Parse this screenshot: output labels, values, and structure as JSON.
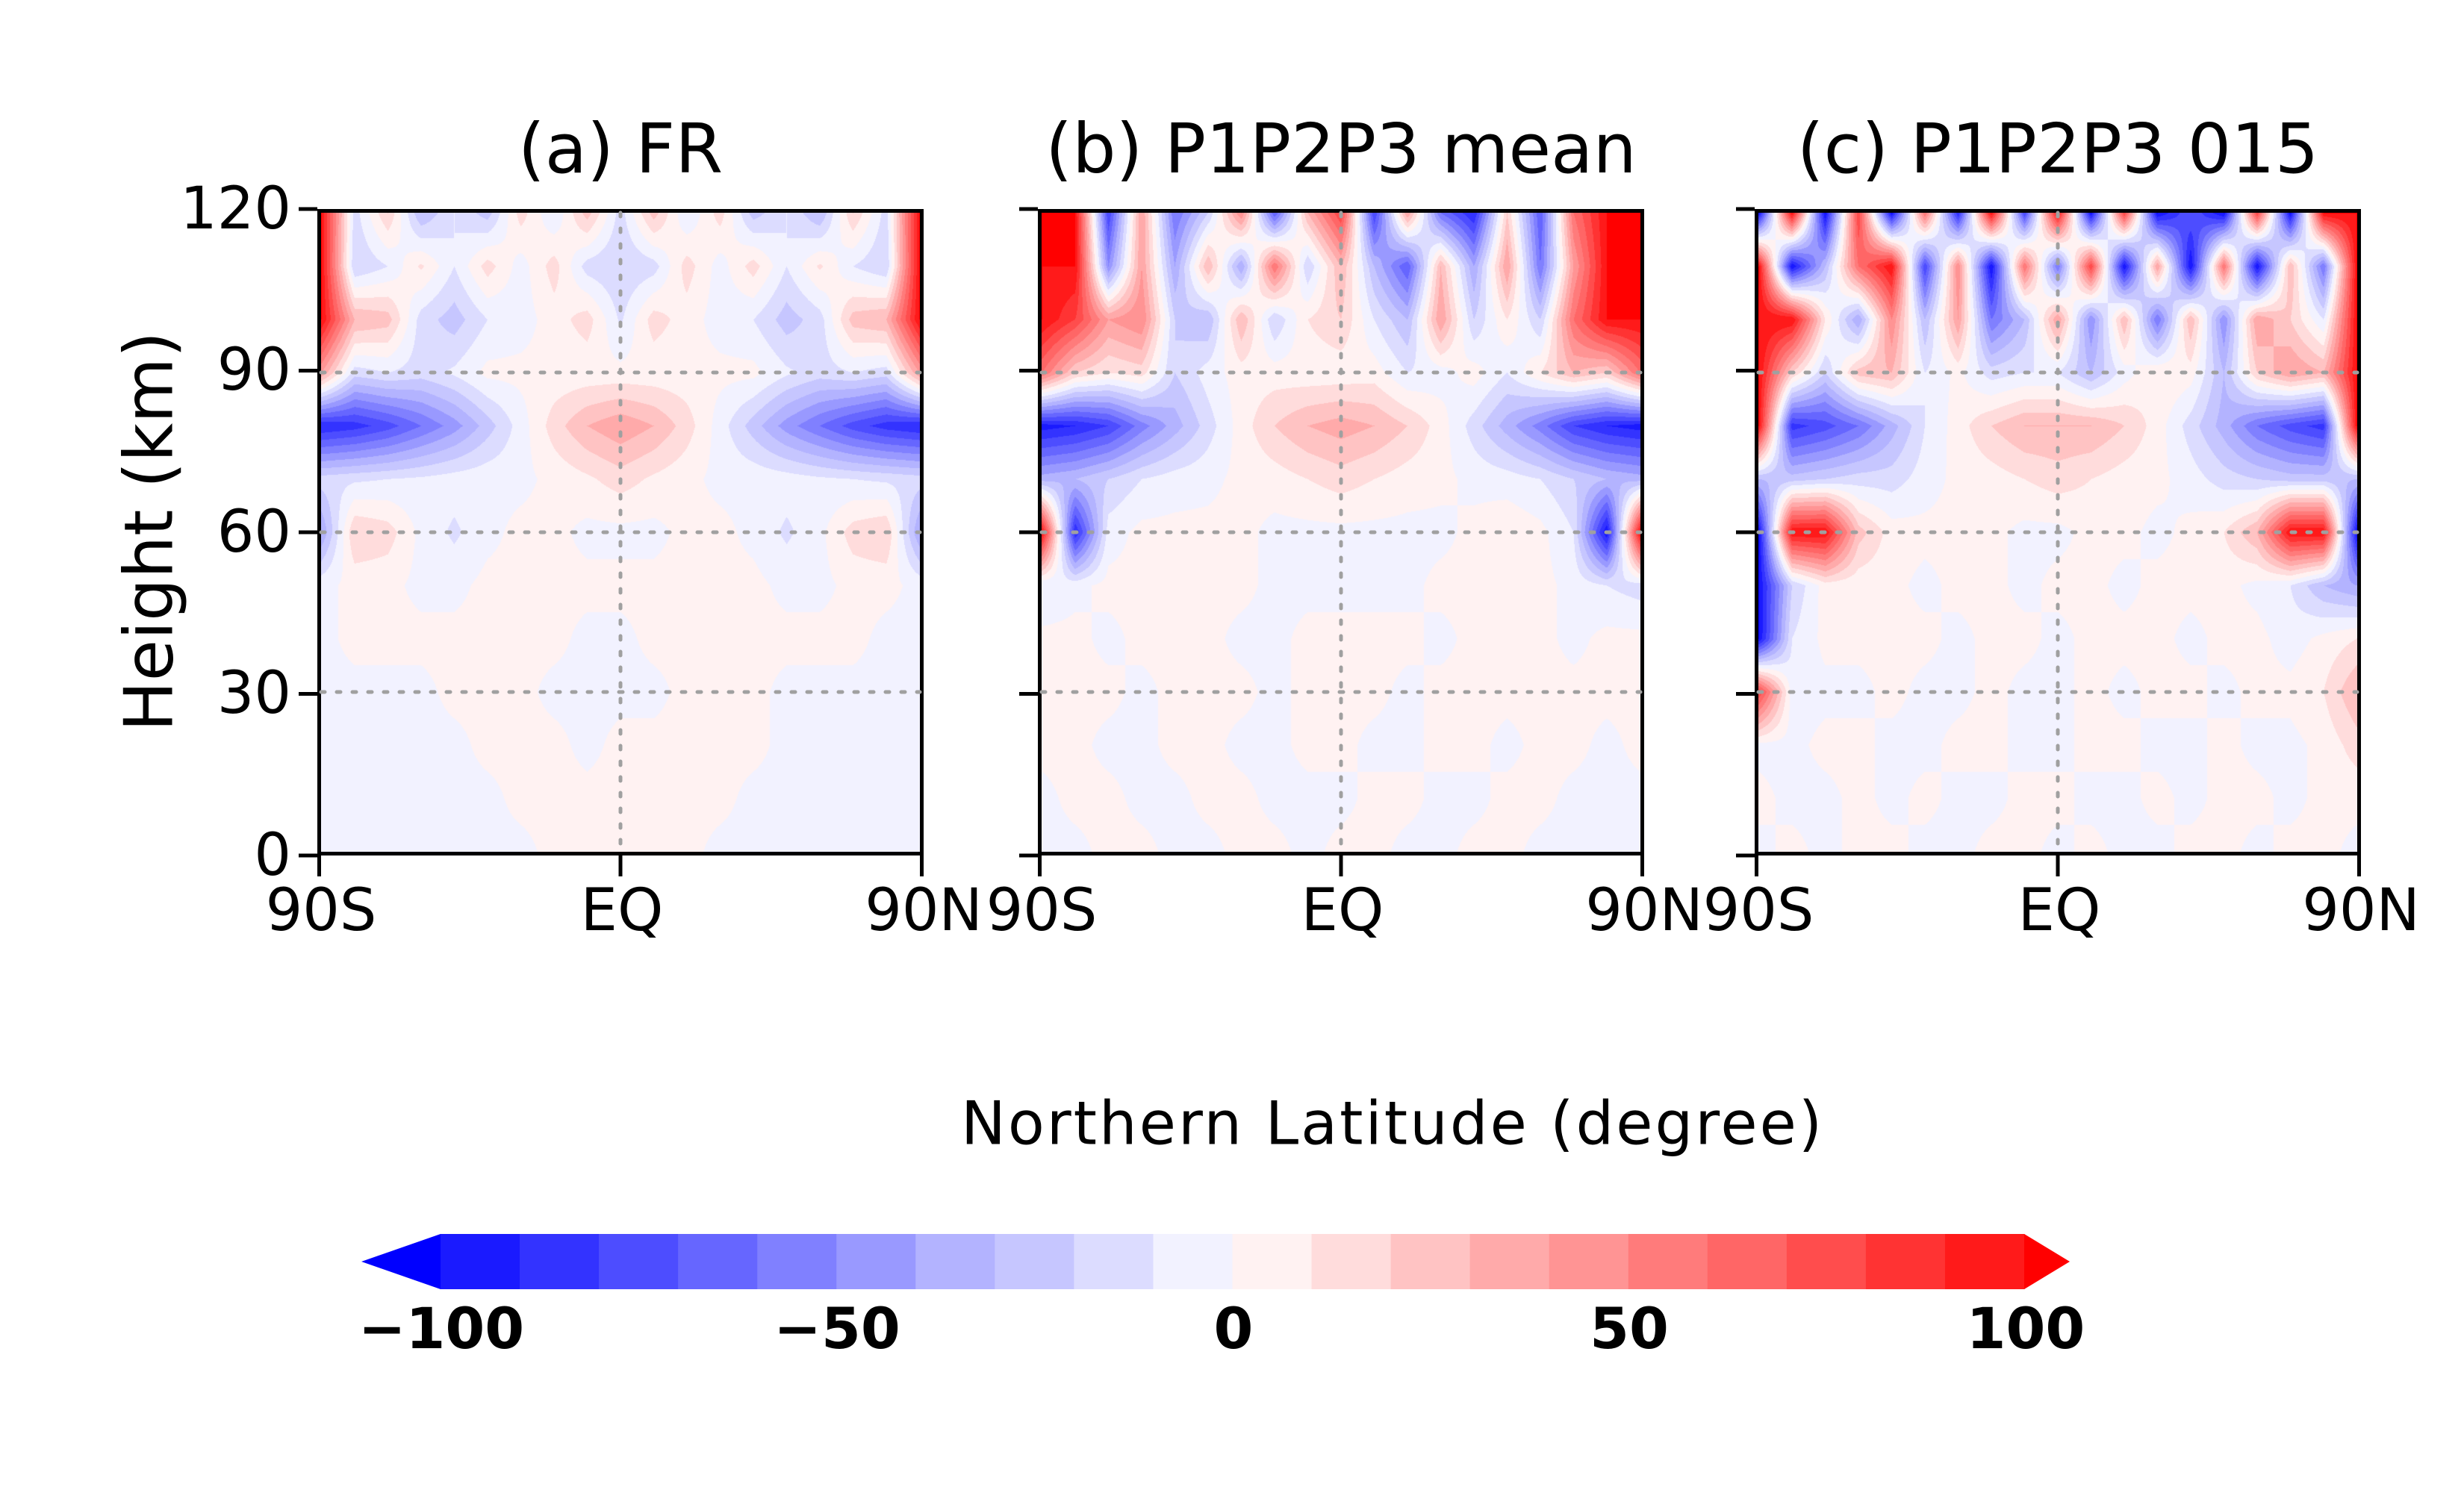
{
  "chart_data": {
    "type": "heatmap",
    "xlabel": "Northern Latitude (degree)",
    "ylabel": "Height (km)",
    "x_ticks": [
      "90S",
      "EQ",
      "90N"
    ],
    "y_ticks": [
      "0",
      "30",
      "60",
      "90",
      "120"
    ],
    "xlim": [
      -90,
      90
    ],
    "ylim": [
      0,
      120
    ],
    "grid": "dotted at 30, 60, 90 km and EQ",
    "lat": [
      -90,
      -80,
      -70,
      -60,
      -50,
      -40,
      -30,
      -20,
      -10,
      0,
      10,
      20,
      30,
      40,
      50,
      60,
      70,
      80,
      90
    ],
    "height": [
      0,
      10,
      20,
      30,
      40,
      50,
      60,
      70,
      80,
      90,
      100,
      110,
      120
    ],
    "colorbar": {
      "levels_min": -100,
      "levels_max": 100,
      "step": 10,
      "tick_labels": [
        "-100",
        "-50",
        "0",
        "50",
        "100"
      ],
      "tick_values": [
        -100,
        -50,
        0,
        50,
        100
      ],
      "colors": [
        "#1a1aff",
        "#3333ff",
        "#4d4dff",
        "#6666ff",
        "#8080ff",
        "#9999ff",
        "#b3b3ff",
        "#c6c6ff",
        "#dcdcff",
        "#f2f2ff",
        "#fff2f2",
        "#ffdcdc",
        "#ffc3c3",
        "#ffaaaa",
        "#ff9494",
        "#ff7b7b",
        "#ff6666",
        "#ff4d4d",
        "#ff3333",
        "#ff1a1a"
      ],
      "under_color": "#0000ff",
      "over_color": "#ff0000",
      "extend": "both",
      "placement": "bottom"
    },
    "panels": [
      {
        "title": "(a) FR",
        "z": [
          [
            -3,
            -3,
            -3,
            -3,
            -3,
            -3,
            -3,
            3,
            3,
            3,
            3,
            3,
            -3,
            -3,
            -3,
            -3,
            -3,
            -3,
            -3
          ],
          [
            -3,
            -3,
            -3,
            -3,
            -3,
            -3,
            3,
            3,
            3,
            3,
            3,
            3,
            3,
            -3,
            -3,
            -3,
            -3,
            -3,
            -3
          ],
          [
            -3,
            -3,
            -3,
            -3,
            -3,
            3,
            3,
            3,
            -3,
            3,
            3,
            3,
            3,
            3,
            -3,
            -3,
            -3,
            -3,
            -3
          ],
          [
            -3,
            -3,
            -3,
            -3,
            3,
            3,
            3,
            -3,
            -3,
            -3,
            -3,
            3,
            3,
            3,
            -3,
            -3,
            -3,
            -3,
            -3
          ],
          [
            -3,
            3,
            3,
            3,
            3,
            3,
            3,
            3,
            -3,
            -3,
            3,
            3,
            3,
            3,
            3,
            3,
            3,
            -3,
            -3
          ],
          [
            -3,
            3,
            3,
            -3,
            -3,
            3,
            3,
            3,
            3,
            3,
            3,
            3,
            3,
            3,
            -3,
            -3,
            3,
            3,
            -3
          ],
          [
            -40,
            20,
            15,
            -3,
            -12,
            -3,
            3,
            3,
            -3,
            -3,
            -3,
            3,
            3,
            -3,
            -12,
            -3,
            15,
            20,
            -40
          ],
          [
            -15,
            -12,
            -10,
            -8,
            -5,
            -3,
            -3,
            3,
            8,
            15,
            8,
            3,
            -3,
            -3,
            -5,
            -8,
            -10,
            -12,
            -15
          ],
          [
            -90,
            -85,
            -75,
            -60,
            -45,
            -25,
            -5,
            15,
            30,
            38,
            30,
            15,
            -5,
            -25,
            -45,
            -60,
            -75,
            -85,
            -90
          ],
          [
            40,
            -15,
            -10,
            -15,
            -8,
            3,
            3,
            3,
            3,
            3,
            3,
            3,
            3,
            3,
            -8,
            -15,
            -10,
            -15,
            40
          ],
          [
            100,
            30,
            25,
            -15,
            -25,
            -10,
            -5,
            5,
            15,
            -12,
            15,
            5,
            -5,
            -10,
            -25,
            -15,
            25,
            30,
            100
          ],
          [
            100,
            -20,
            -10,
            12,
            -10,
            15,
            -5,
            15,
            -15,
            -20,
            -15,
            15,
            -5,
            15,
            -10,
            12,
            -10,
            -20,
            100
          ],
          [
            100,
            -15,
            20,
            -30,
            -10,
            -25,
            15,
            -10,
            25,
            -15,
            25,
            -10,
            15,
            -25,
            -10,
            -30,
            20,
            -15,
            100
          ]
        ]
      },
      {
        "title": "(b) P1P2P3 mean",
        "z": [
          [
            -3,
            -3,
            3,
            3,
            -3,
            -3,
            3,
            3,
            -3,
            3,
            3,
            -3,
            -3,
            3,
            3,
            -3,
            -3,
            -3,
            -3
          ],
          [
            -3,
            3,
            3,
            -3,
            -3,
            3,
            3,
            -3,
            -3,
            -3,
            3,
            3,
            -3,
            -3,
            3,
            3,
            -3,
            -3,
            -3
          ],
          [
            3,
            3,
            -3,
            -3,
            3,
            3,
            -3,
            -3,
            3,
            3,
            -3,
            -3,
            3,
            3,
            -3,
            3,
            3,
            -3,
            3
          ],
          [
            3,
            3,
            3,
            -3,
            3,
            3,
            3,
            -3,
            3,
            3,
            3,
            -3,
            3,
            3,
            3,
            3,
            3,
            3,
            3
          ],
          [
            3,
            3,
            -3,
            3,
            3,
            3,
            -3,
            -3,
            3,
            3,
            3,
            3,
            -3,
            3,
            3,
            3,
            -3,
            3,
            3
          ],
          [
            -10,
            -3,
            3,
            3,
            3,
            3,
            3,
            -3,
            -3,
            -3,
            -3,
            -3,
            3,
            3,
            3,
            3,
            -3,
            -10,
            -15
          ],
          [
            100,
            -90,
            -5,
            3,
            3,
            3,
            3,
            -3,
            -3,
            -3,
            -3,
            -3,
            -3,
            3,
            8,
            3,
            -10,
            -100,
            100
          ],
          [
            -35,
            -30,
            -20,
            -10,
            -5,
            -3,
            3,
            5,
            10,
            15,
            10,
            5,
            3,
            -3,
            -5,
            -10,
            -20,
            -30,
            -35
          ],
          [
            -95,
            -90,
            -80,
            -55,
            -35,
            -15,
            5,
            20,
            30,
            35,
            30,
            20,
            5,
            -15,
            -35,
            -55,
            -80,
            -90,
            -95
          ],
          [
            60,
            20,
            10,
            15,
            -20,
            -5,
            5,
            5,
            3,
            3,
            5,
            -10,
            -5,
            5,
            -10,
            10,
            30,
            20,
            60
          ],
          [
            100,
            80,
            40,
            50,
            -20,
            -30,
            30,
            -20,
            10,
            20,
            -10,
            -30,
            40,
            -20,
            10,
            -20,
            60,
            100,
            100
          ],
          [
            100,
            100,
            -50,
            40,
            -40,
            30,
            -40,
            60,
            -20,
            30,
            -30,
            -70,
            30,
            -40,
            40,
            -60,
            40,
            100,
            100
          ],
          [
            100,
            100,
            -80,
            40,
            -60,
            -20,
            50,
            -70,
            30,
            80,
            -80,
            40,
            -60,
            -90,
            20,
            -70,
            60,
            100,
            100
          ]
        ]
      },
      {
        "title": "(c) P1P2P3 015",
        "z": [
          [
            -3,
            3,
            -3,
            3,
            3,
            -3,
            -3,
            3,
            3,
            -3,
            3,
            -3,
            -3,
            3,
            3,
            -3,
            3,
            3,
            -3
          ],
          [
            3,
            -3,
            -3,
            3,
            -3,
            3,
            -3,
            -3,
            3,
            3,
            -3,
            -3,
            3,
            -3,
            3,
            3,
            -3,
            3,
            3
          ],
          [
            -3,
            -3,
            3,
            3,
            -3,
            -3,
            3,
            3,
            -3,
            -3,
            3,
            3,
            -3,
            -3,
            3,
            -3,
            -3,
            3,
            15
          ],
          [
            80,
            -5,
            -3,
            -3,
            3,
            -3,
            -3,
            3,
            -3,
            -3,
            3,
            -3,
            3,
            3,
            -3,
            3,
            3,
            10,
            30
          ],
          [
            -100,
            -10,
            3,
            3,
            3,
            3,
            -3,
            3,
            3,
            -3,
            3,
            3,
            3,
            -3,
            3,
            3,
            -5,
            3,
            10
          ],
          [
            -100,
            -20,
            5,
            3,
            3,
            -3,
            3,
            3,
            -3,
            3,
            3,
            -3,
            3,
            3,
            3,
            -3,
            -10,
            -30,
            -40
          ],
          [
            -100,
            100,
            100,
            25,
            5,
            3,
            3,
            3,
            -3,
            -3,
            3,
            3,
            -3,
            3,
            10,
            30,
            100,
            100,
            -100
          ],
          [
            -30,
            -25,
            -20,
            -15,
            -15,
            -5,
            3,
            5,
            10,
            15,
            10,
            5,
            3,
            -5,
            -15,
            -20,
            -25,
            -25,
            -30
          ],
          [
            100,
            -85,
            -75,
            -60,
            -35,
            -10,
            5,
            20,
            30,
            30,
            30,
            20,
            5,
            -15,
            -35,
            -60,
            -75,
            -85,
            100
          ],
          [
            100,
            20,
            -20,
            25,
            30,
            -10,
            3,
            -15,
            -10,
            -10,
            -30,
            -5,
            10,
            5,
            -30,
            20,
            40,
            30,
            100
          ],
          [
            100,
            100,
            10,
            -40,
            50,
            -30,
            40,
            -60,
            -30,
            40,
            -50,
            30,
            -60,
            30,
            -50,
            40,
            20,
            -10,
            100
          ],
          [
            100,
            -100,
            -30,
            60,
            100,
            -80,
            50,
            -100,
            60,
            -60,
            80,
            -100,
            40,
            -100,
            60,
            -100,
            30,
            -60,
            100
          ],
          [
            -100,
            100,
            -100,
            80,
            -100,
            60,
            -90,
            100,
            -80,
            100,
            -100,
            80,
            -100,
            -70,
            -100,
            80,
            -100,
            100,
            100
          ]
        ]
      }
    ]
  }
}
